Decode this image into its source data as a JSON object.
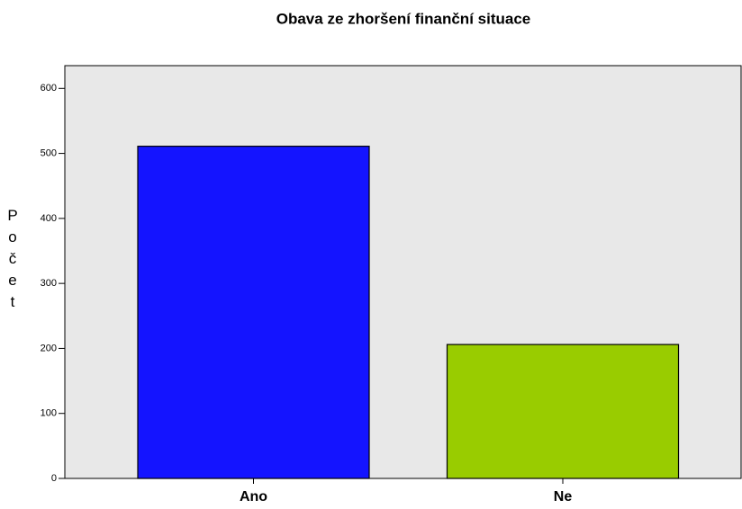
{
  "chart_data": {
    "type": "bar",
    "title": "Obava ze zhoršení finanční situace",
    "ylabel": "Počet",
    "categories": [
      "Ano",
      "Ne"
    ],
    "values": [
      511,
      206
    ],
    "colors": [
      "#1414ff",
      "#99cc00"
    ],
    "ylim": [
      0,
      635
    ],
    "yticks": [
      0,
      100,
      200,
      300,
      400,
      500,
      600
    ],
    "grid": false
  }
}
